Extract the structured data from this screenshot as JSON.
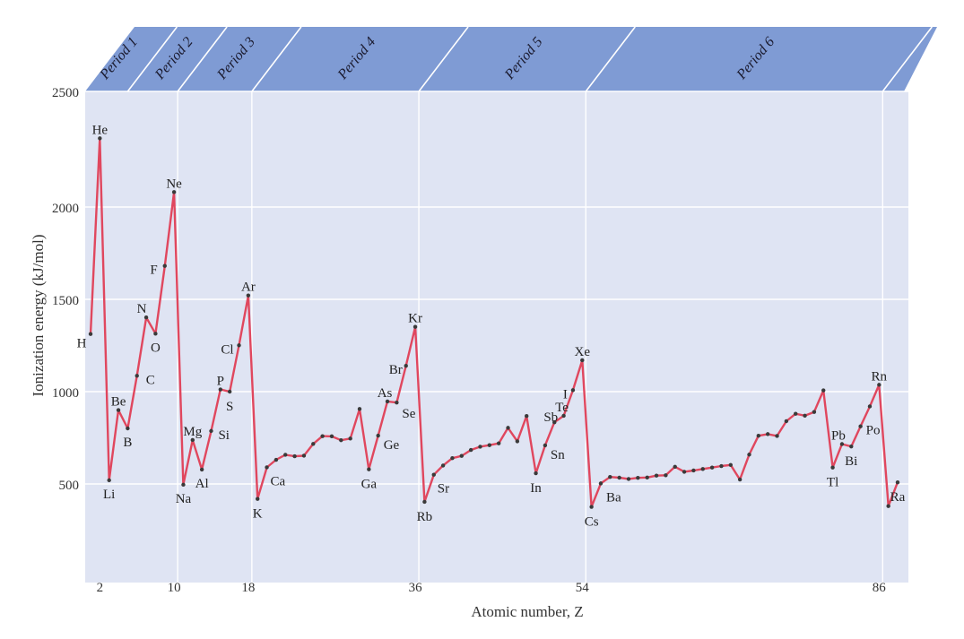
{
  "chart_data": {
    "type": "line",
    "title": "",
    "xlabel": "Atomic number, Z",
    "ylabel": "Ionization energy (kJ/mol)",
    "xlim": [
      1,
      88
    ],
    "ylim": [
      500,
      2500
    ],
    "y_ticks": [
      500,
      1000,
      1500,
      2000,
      2500
    ],
    "x_ticks": [
      2,
      10,
      18,
      36,
      54,
      86
    ],
    "line_color": "#e0475e",
    "panel_color": "#dfe4f3",
    "band_color": "#7f9bd4",
    "periods": [
      {
        "label": "Period 1",
        "start": 1,
        "end": 2
      },
      {
        "label": "Period 2",
        "start": 3,
        "end": 10
      },
      {
        "label": "Period 3",
        "start": 11,
        "end": 18
      },
      {
        "label": "Period 4",
        "start": 19,
        "end": 36
      },
      {
        "label": "Period 5",
        "start": 37,
        "end": 54
      },
      {
        "label": "Period 6",
        "start": 55,
        "end": 86
      }
    ],
    "x": [
      1,
      2,
      3,
      4,
      5,
      6,
      7,
      8,
      9,
      10,
      11,
      12,
      13,
      14,
      15,
      16,
      17,
      18,
      19,
      20,
      21,
      22,
      23,
      24,
      25,
      26,
      27,
      28,
      29,
      30,
      31,
      32,
      33,
      34,
      35,
      36,
      37,
      38,
      39,
      40,
      41,
      42,
      43,
      44,
      45,
      46,
      47,
      48,
      49,
      50,
      51,
      52,
      53,
      54,
      55,
      56,
      57,
      58,
      59,
      60,
      61,
      62,
      63,
      64,
      65,
      66,
      67,
      68,
      69,
      70,
      71,
      72,
      73,
      74,
      75,
      76,
      77,
      78,
      79,
      80,
      81,
      82,
      83,
      84,
      85,
      86,
      87,
      88
    ],
    "values": [
      1312,
      2372,
      520,
      900,
      801,
      1086,
      1402,
      1314,
      1681,
      2081,
      496,
      738,
      578,
      787,
      1012,
      1000,
      1251,
      1521,
      419,
      590,
      631,
      658,
      650,
      653,
      717,
      759,
      758,
      737,
      746,
      906,
      579,
      762,
      947,
      941,
      1140,
      1351,
      403,
      550,
      600,
      640,
      652,
      684,
      702,
      710,
      720,
      804,
      731,
      868,
      558,
      709,
      834,
      869,
      1008,
      1170,
      376,
      503,
      538,
      534,
      527,
      533,
      535,
      545,
      547,
      593,
      566,
      573,
      581,
      589,
      597,
      603,
      524,
      659,
      761,
      770,
      760,
      840,
      880,
      870,
      890,
      1007,
      589,
      716,
      703,
      812,
      920,
      1037,
      380,
      509
    ],
    "labels": [
      {
        "z": 1,
        "text": "H"
      },
      {
        "z": 2,
        "text": "He"
      },
      {
        "z": 3,
        "text": "Li"
      },
      {
        "z": 4,
        "text": "Be"
      },
      {
        "z": 5,
        "text": "B"
      },
      {
        "z": 6,
        "text": "C"
      },
      {
        "z": 7,
        "text": "N"
      },
      {
        "z": 8,
        "text": "O"
      },
      {
        "z": 9,
        "text": "F"
      },
      {
        "z": 10,
        "text": "Ne"
      },
      {
        "z": 11,
        "text": "Na"
      },
      {
        "z": 12,
        "text": "Mg"
      },
      {
        "z": 13,
        "text": "Al"
      },
      {
        "z": 14,
        "text": "Si"
      },
      {
        "z": 15,
        "text": "P"
      },
      {
        "z": 16,
        "text": "S"
      },
      {
        "z": 17,
        "text": "Cl"
      },
      {
        "z": 18,
        "text": "Ar"
      },
      {
        "z": 19,
        "text": "K"
      },
      {
        "z": 20,
        "text": "Ca"
      },
      {
        "z": 31,
        "text": "Ga"
      },
      {
        "z": 32,
        "text": "Ge"
      },
      {
        "z": 33,
        "text": "As"
      },
      {
        "z": 34,
        "text": "Se"
      },
      {
        "z": 35,
        "text": "Br"
      },
      {
        "z": 36,
        "text": "Kr"
      },
      {
        "z": 37,
        "text": "Rb"
      },
      {
        "z": 38,
        "text": "Sr"
      },
      {
        "z": 49,
        "text": "In"
      },
      {
        "z": 50,
        "text": "Sn"
      },
      {
        "z": 51,
        "text": "Sb"
      },
      {
        "z": 52,
        "text": "Te"
      },
      {
        "z": 53,
        "text": "I"
      },
      {
        "z": 54,
        "text": "Xe"
      },
      {
        "z": 55,
        "text": "Cs"
      },
      {
        "z": 56,
        "text": "Ba"
      },
      {
        "z": 81,
        "text": "Tl"
      },
      {
        "z": 82,
        "text": "Pb"
      },
      {
        "z": 83,
        "text": "Bi"
      },
      {
        "z": 84,
        "text": "Po"
      },
      {
        "z": 86,
        "text": "Rn"
      },
      {
        "z": 88,
        "text": "Ra"
      }
    ]
  }
}
